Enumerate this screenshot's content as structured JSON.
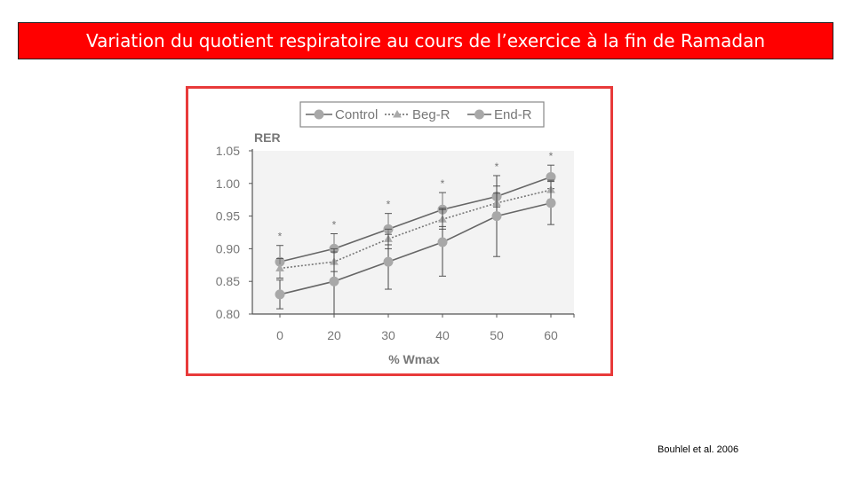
{
  "slide": {
    "title": "Variation du quotient respiratoire au cours de l’exercice à la fin de Ramadan",
    "citation": "Bouhlel et al. 2006"
  },
  "chart_data": {
    "type": "line",
    "ylabel": "RER",
    "xlabel": "% Wmax",
    "x": [
      0,
      20,
      30,
      40,
      50,
      60
    ],
    "x_ticks": [
      "0",
      "20",
      "30",
      "40",
      "50",
      "60"
    ],
    "ylim": [
      0.8,
      1.05
    ],
    "y_ticks": [
      "0.80",
      "0.85",
      "0.90",
      "0.95",
      "1.00",
      "1.05"
    ],
    "legend_position": "top",
    "significance_marker": "*",
    "significance_at": [
      0,
      20,
      30,
      40,
      50,
      60
    ],
    "series": [
      {
        "name": "Control",
        "marker": "circle",
        "dash": "solid",
        "color": "#777777",
        "values": [
          0.88,
          0.9,
          0.93,
          0.96,
          0.98,
          1.01
        ],
        "err": [
          0.025,
          0.023,
          0.024,
          0.026,
          0.016,
          0.018
        ]
      },
      {
        "name": "Beg-R",
        "marker": "triangle",
        "dash": "dotted",
        "color": "#888888",
        "values": [
          0.87,
          0.88,
          0.915,
          0.945,
          0.97,
          0.99
        ],
        "err": [
          0.015,
          0.015,
          0.015,
          0.015,
          0.015,
          0.015
        ]
      },
      {
        "name": "End-R",
        "marker": "circle",
        "dash": "solid",
        "color": "#8a8a8a",
        "values": [
          0.83,
          0.85,
          0.88,
          0.91,
          0.95,
          0.97
        ],
        "err": [
          0.022,
          0.05,
          0.042,
          0.052,
          0.062,
          0.033
        ]
      }
    ]
  }
}
